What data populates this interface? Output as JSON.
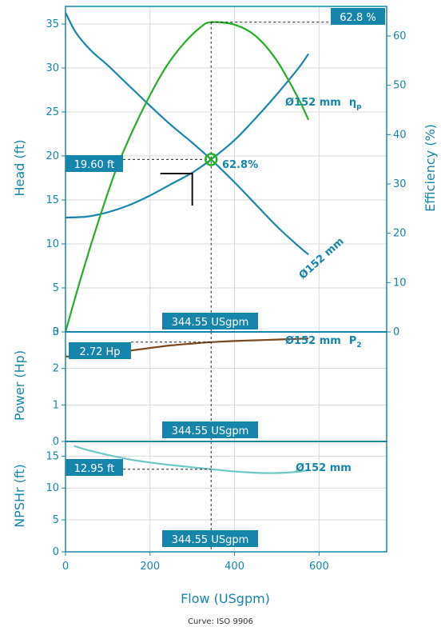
{
  "chart_data": [
    {
      "type": "line",
      "panel": "head-efficiency",
      "xlabel": "Flow (USgpm)",
      "ylabel": "Head (ft)",
      "y2label": "Efficiency (%)",
      "xlim": [
        0,
        760
      ],
      "ylim": [
        0,
        37
      ],
      "y2lim": [
        0,
        66
      ],
      "x_ticks": [
        0,
        200,
        400,
        600
      ],
      "y_ticks": [
        0,
        5,
        10,
        15,
        20,
        25,
        30,
        35
      ],
      "y2_ticks": [
        0,
        10,
        20,
        30,
        40,
        50,
        60
      ],
      "grid": true,
      "series": [
        {
          "name": "Ø152 mm",
          "axis": "left",
          "color": "#1a86ad",
          "x": [
            0,
            25,
            60,
            100,
            150,
            200,
            250,
            300,
            344.55,
            400,
            450,
            500,
            550,
            575
          ],
          "y": [
            36.3,
            34.0,
            32.0,
            30.3,
            28.0,
            25.7,
            23.5,
            21.5,
            19.6,
            17.0,
            14.5,
            12.0,
            9.8,
            8.8
          ]
        },
        {
          "name": "",
          "axis": "left",
          "color": "#1a86ad",
          "x": [
            0,
            50,
            100,
            150,
            200,
            250,
            300,
            344.55,
            400,
            450,
            500,
            550,
            575
          ],
          "y": [
            13.0,
            13.1,
            13.6,
            14.4,
            15.5,
            16.8,
            18.1,
            19.6,
            21.8,
            24.3,
            27.0,
            29.9,
            31.6
          ]
        },
        {
          "name": "Ø152 mm ηp",
          "axis": "right",
          "color": "#24b024",
          "x": [
            0,
            40,
            80,
            120,
            160,
            200,
            240,
            280,
            320,
            344.55,
            400,
            450,
            500,
            550,
            575
          ],
          "y": [
            0,
            12,
            23,
            33,
            41,
            48,
            54,
            58.5,
            61.8,
            62.8,
            62.3,
            60.0,
            55.0,
            47.5,
            43.0
          ]
        }
      ],
      "annotations": {
        "operating_flow": "344.55 USgpm",
        "operating_head": "19.60 ft",
        "operating_efficiency": "62.8%",
        "max_efficiency": "62.8 %",
        "duty_point": {
          "x": 300,
          "y": 18
        }
      }
    },
    {
      "type": "line",
      "panel": "power",
      "ylabel": "Power (Hp)",
      "xlim": [
        0,
        760
      ],
      "ylim": [
        0,
        3
      ],
      "y_ticks": [
        0,
        1,
        2,
        3
      ],
      "grid": true,
      "series": [
        {
          "name": "Ø152 mm P2",
          "color": "#7a4a1f",
          "x": [
            0,
            50,
            100,
            150,
            200,
            250,
            300,
            344.55,
            400,
            450,
            500,
            550,
            575
          ],
          "y": [
            2.33,
            2.3,
            2.38,
            2.48,
            2.56,
            2.63,
            2.68,
            2.72,
            2.75,
            2.77,
            2.79,
            2.81,
            2.82
          ]
        }
      ],
      "annotations": {
        "operating_flow": "344.55 USgpm",
        "operating_power": "2.72 Hp"
      }
    },
    {
      "type": "line",
      "panel": "npshr",
      "ylabel": "NPSHr (ft)",
      "xlim": [
        0,
        760
      ],
      "ylim": [
        0,
        17.3
      ],
      "y_ticks": [
        0,
        5,
        10,
        15
      ],
      "x_ticks": [
        0,
        200,
        400,
        600
      ],
      "grid": true,
      "series": [
        {
          "name": "Ø152 mm",
          "color": "#6fc7c5",
          "x": [
            20,
            50,
            100,
            150,
            200,
            250,
            300,
            344.55,
            400,
            450,
            500,
            550,
            575
          ],
          "y": [
            16.6,
            16.0,
            15.2,
            14.5,
            14.0,
            13.6,
            13.25,
            12.95,
            12.6,
            12.4,
            12.35,
            12.55,
            12.8
          ]
        }
      ],
      "annotations": {
        "operating_flow": "344.55 USgpm",
        "operating_npshr": "12.95 ft"
      }
    }
  ],
  "labels": {
    "curve_head": "Ø152 mm",
    "curve_eff_name": "Ø152 mm",
    "curve_eff_sym": "η",
    "curve_eff_sub": "p",
    "curve_power_name": "Ø152 mm",
    "curve_power_sym": "P",
    "curve_power_sub": "2",
    "curve_npsh": "Ø152 mm",
    "caption": "Curve: ISO 9906"
  },
  "colors": {
    "axis": "#1585ab",
    "callout_bg": "#1585ab",
    "head": "#1a86ad",
    "efficiency": "#24b024",
    "power": "#7a4a1f",
    "npsh": "#6fc7c5"
  }
}
